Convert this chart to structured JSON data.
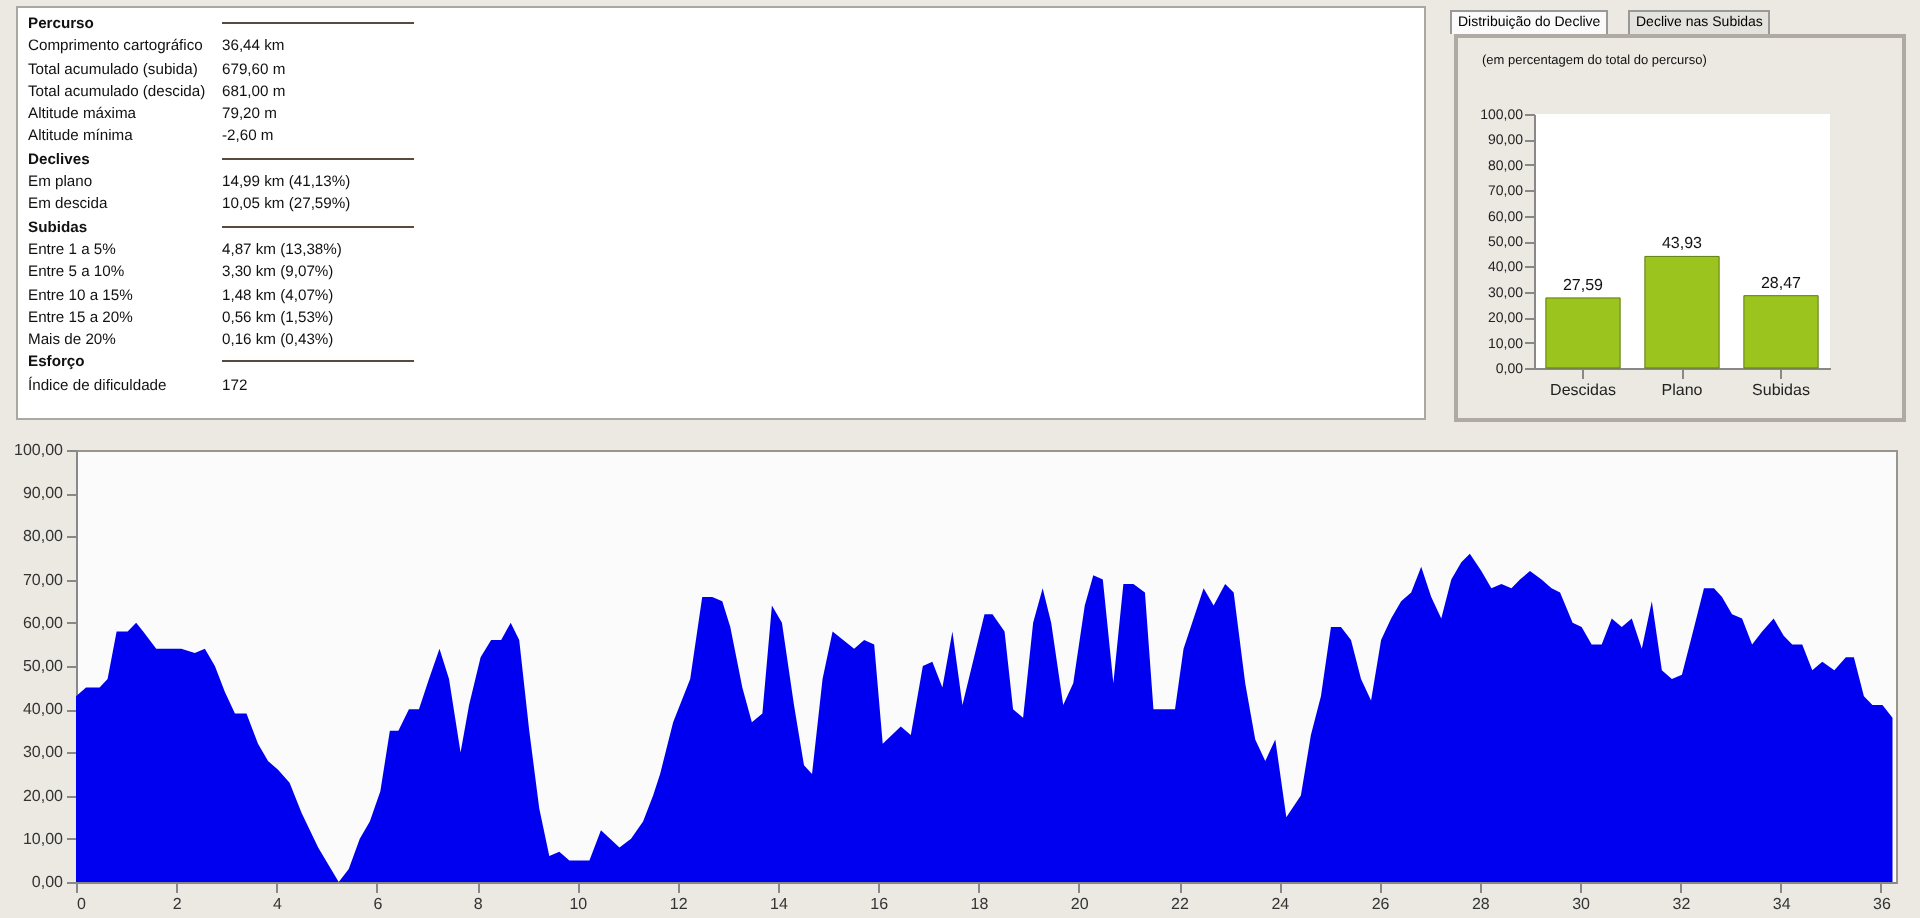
{
  "chart_data": [
    {
      "type": "other",
      "title": "Percurso",
      "annotations": [
        "Comprimento cartográfico",
        "36,44 km",
        "Total acumulado (subida)",
        "679,60 m",
        "Total acumulado (descida)",
        "681,00 m",
        "Altitude máxima",
        "79,20 m",
        "Altitude mínima",
        "-2,60 m"
      ]
    },
    {
      "type": "other",
      "title": "Declives",
      "annotations": [
        "Em plano",
        "14,99 km (41,13%)",
        "Em descida",
        "10,05 km (27,59%)"
      ]
    },
    {
      "type": "other",
      "title": "Subidas",
      "annotations": [
        "Entre 1 a 5%",
        "4,87 km (13,38%)",
        "Entre 5 a 10%",
        "3,30 km (9,07%)",
        "Entre 10 a 15%",
        "1,48 km (4,07%)",
        "Entre 15 a 20%",
        "0,56 km (1,53%)",
        "Mais de 20%",
        "0,16 km (0,43%)"
      ]
    },
    {
      "type": "other",
      "title": "Esforço",
      "annotations": [
        "Índice de dificuldade",
        "172"
      ]
    },
    {
      "type": "bar",
      "title": "Distribuição do Declive",
      "subtitle": "(em percentagem do total do percurso)",
      "annotations": [
        "Declive nas Subidas"
      ],
      "categories": [
        "Descidas",
        "Plano",
        "Subidas"
      ],
      "values": [
        27.59,
        43.93,
        28.47
      ],
      "value_labels": [
        "27,59",
        "43,93",
        "28,47"
      ],
      "color": "#9bc41e",
      "ylim": [
        0,
        100
      ],
      "yticks": [
        {
          "value": 0,
          "label": "0,00"
        },
        {
          "value": 10,
          "label": "10,00"
        },
        {
          "value": 20,
          "label": "20,00"
        },
        {
          "value": 30,
          "label": "30,00"
        },
        {
          "value": 40,
          "label": "40,00"
        },
        {
          "value": 50,
          "label": "50,00"
        },
        {
          "value": 60,
          "label": "60,00"
        },
        {
          "value": 70,
          "label": "70,00"
        },
        {
          "value": 80,
          "label": "80,00"
        },
        {
          "value": 90,
          "label": "90,00"
        },
        {
          "value": 100,
          "label": "100,00"
        }
      ]
    },
    {
      "type": "area",
      "color": "#0000f0",
      "xlim": [
        0,
        36.3
      ],
      "xticks": [
        0,
        2,
        4,
        6,
        8,
        10,
        12,
        14,
        16,
        18,
        20,
        22,
        24,
        26,
        28,
        30,
        32,
        34,
        36
      ],
      "ylim": [
        0,
        100
      ],
      "yticks": [
        {
          "value": 0,
          "label": "0,00"
        },
        {
          "value": 10,
          "label": "10,00"
        },
        {
          "value": 20,
          "label": "20,00"
        },
        {
          "value": 30,
          "label": "30,00"
        },
        {
          "value": 40,
          "label": "40,00"
        },
        {
          "value": 50,
          "label": "50,00"
        },
        {
          "value": 60,
          "label": "60,00"
        },
        {
          "value": 70,
          "label": "70,00"
        },
        {
          "value": 80,
          "label": "80,00"
        },
        {
          "value": 90,
          "label": "90,00"
        },
        {
          "value": 100,
          "label": "100,00"
        }
      ],
      "x": [
        0,
        0.2,
        0.47,
        0.63,
        0.81,
        1.03,
        1.2,
        1.34,
        1.6,
        2.1,
        2.37,
        2.57,
        2.77,
        2.97,
        3.17,
        3.4,
        3.63,
        3.83,
        4.03,
        4.26,
        4.5,
        4.83,
        5.24,
        5.44,
        5.66,
        5.86,
        6.07,
        6.26,
        6.43,
        6.64,
        6.84,
        7.04,
        7.25,
        7.44,
        7.67,
        7.84,
        8.07,
        8.28,
        8.48,
        8.67,
        8.84,
        9.04,
        9.24,
        9.44,
        9.64,
        9.84,
        10.24,
        10.47,
        10.84,
        11.07,
        11.31,
        11.51,
        11.65,
        11.91,
        12.25,
        12.49,
        12.69,
        12.89,
        13.05,
        13.29,
        13.48,
        13.69,
        13.88,
        14.08,
        14.32,
        14.52,
        14.68,
        14.89,
        15.09,
        15.52,
        15.72,
        15.92,
        16.09,
        16.45,
        16.65,
        16.89,
        17.08,
        17.28,
        17.48,
        17.68,
        18.12,
        18.28,
        18.52,
        18.69,
        18.89,
        19.09,
        19.28,
        19.45,
        19.69,
        19.89,
        20.12,
        20.29,
        20.48,
        20.69,
        20.89,
        21.09,
        21.32,
        21.49,
        21.92,
        22.09,
        22.49,
        22.69,
        22.92,
        23.09,
        23.32,
        23.52,
        23.72,
        23.92,
        24.14,
        24.43,
        24.63,
        24.83,
        25.03,
        25.23,
        25.43,
        25.63,
        25.83,
        26.03,
        26.23,
        26.43,
        26.63,
        26.83,
        27.03,
        27.23,
        27.43,
        27.63,
        27.8,
        28.03,
        28.23,
        28.43,
        28.63,
        28.8,
        29,
        29.23,
        29.43,
        29.6,
        29.85,
        30.03,
        30.23,
        30.43,
        30.63,
        30.83,
        31.03,
        31.23,
        31.43,
        31.63,
        31.83,
        32.03,
        32.23,
        32.47,
        32.67,
        32.83,
        33.03,
        33.23,
        33.43,
        33.63,
        33.86,
        34.06,
        34.23,
        34.43,
        34.63,
        34.83,
        35.07,
        35.3,
        35.46,
        35.66,
        35.83,
        36.03,
        36.23
      ],
      "values": [
        43,
        45,
        45,
        47,
        58,
        58,
        60,
        58,
        54,
        54,
        53,
        54,
        50,
        44,
        39,
        39,
        32,
        28,
        26,
        23,
        16,
        8,
        0,
        3,
        10,
        14,
        21,
        35,
        35,
        40,
        40,
        47,
        54,
        47,
        30,
        41,
        52,
        56,
        56,
        60,
        56,
        35,
        17,
        6,
        7,
        5,
        5,
        12,
        8,
        10,
        14,
        20,
        25,
        37,
        47,
        66,
        66,
        65,
        59,
        45,
        37,
        39,
        64,
        60,
        41,
        27,
        25,
        47,
        58,
        54,
        56,
        55,
        32,
        36,
        34,
        50,
        51,
        45,
        58,
        41,
        62,
        62,
        58,
        40,
        38,
        60,
        68,
        60,
        41,
        46,
        64,
        71,
        70,
        46,
        69,
        69,
        67,
        40,
        40,
        54,
        68,
        64,
        69,
        67,
        46,
        33,
        28,
        33,
        15,
        20,
        34,
        43,
        59,
        59,
        56,
        47,
        42,
        56,
        61,
        65,
        67,
        73,
        66,
        61,
        70,
        74,
        76,
        72,
        68,
        69,
        68,
        70,
        72,
        70,
        68,
        67,
        60,
        59,
        55,
        55,
        61,
        59,
        61,
        54,
        65,
        49,
        47,
        48,
        57,
        68,
        68,
        66,
        62,
        61,
        55,
        58,
        61,
        57,
        55,
        55,
        49,
        51,
        49,
        52,
        52,
        43,
        41,
        41,
        38
      ]
    }
  ]
}
